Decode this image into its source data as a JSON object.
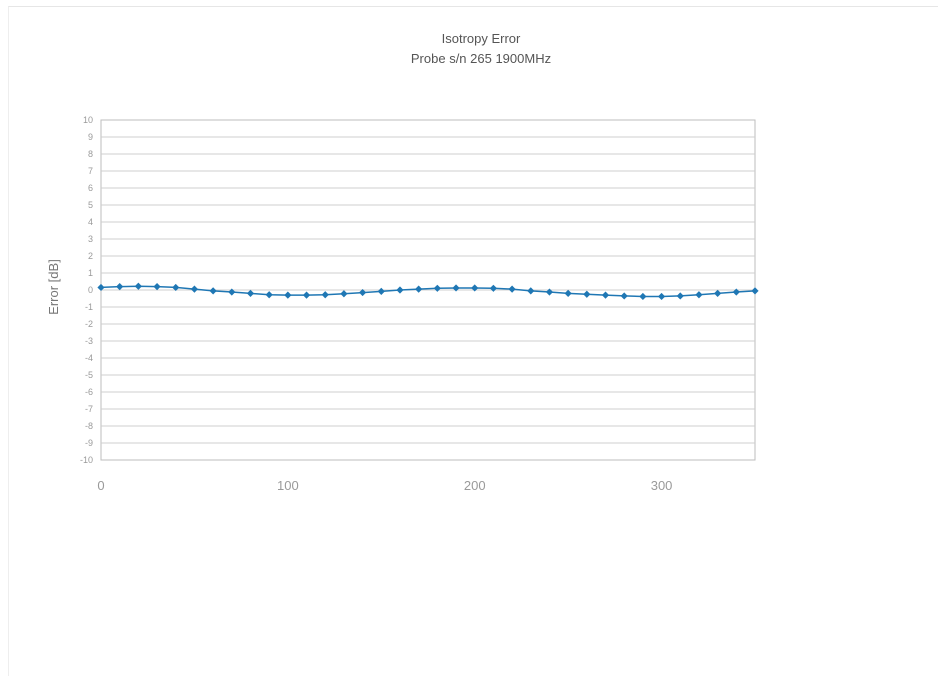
{
  "chart_data": {
    "type": "line",
    "title": "Isotropy Error",
    "subtitle": "Probe s/n 265 1900MHz",
    "xlabel": "",
    "ylabel": "Error [dB]",
    "xlim": [
      0,
      350
    ],
    "ylim": [
      -10,
      10
    ],
    "x_ticks": [
      "0",
      "100",
      "200",
      "300"
    ],
    "y_ticks": [
      "10",
      "9",
      "8",
      "7",
      "6",
      "5",
      "4",
      "3",
      "2",
      "1",
      "0",
      "-1",
      "-2",
      "-3",
      "-4",
      "-5",
      "-6",
      "-7",
      "-8",
      "-9",
      "-10"
    ],
    "grid": true,
    "legend": "none",
    "series_color": "#1f77b4",
    "series": [
      {
        "x": [
          0,
          10,
          20,
          30,
          40,
          50,
          60,
          70,
          80,
          90,
          100,
          110,
          120,
          130,
          140,
          150,
          160,
          170,
          180,
          190,
          200,
          210,
          220,
          230,
          240,
          250,
          260,
          270,
          280,
          290,
          300,
          310,
          320,
          330,
          340,
          350
        ],
        "values": [
          0.15,
          0.2,
          0.22,
          0.2,
          0.15,
          0.05,
          -0.05,
          -0.12,
          -0.2,
          -0.28,
          -0.3,
          -0.3,
          -0.28,
          -0.22,
          -0.15,
          -0.08,
          0.0,
          0.05,
          0.1,
          0.12,
          0.12,
          0.1,
          0.05,
          -0.05,
          -0.12,
          -0.2,
          -0.25,
          -0.3,
          -0.35,
          -0.38,
          -0.38,
          -0.35,
          -0.28,
          -0.2,
          -0.12,
          -0.05
        ]
      }
    ]
  }
}
